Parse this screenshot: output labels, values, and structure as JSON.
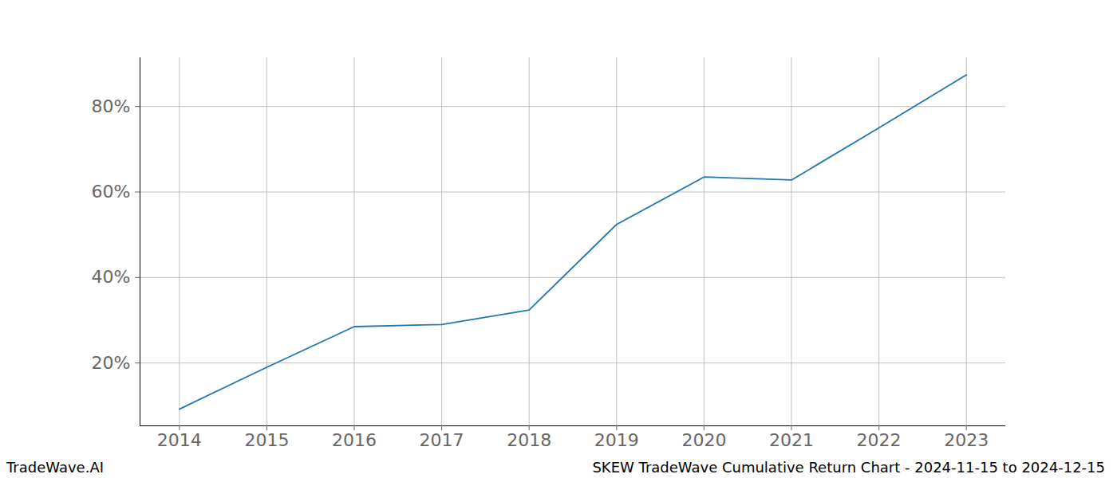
{
  "chart_data": {
    "type": "line",
    "title": "SKEW TradeWave Cumulative Return Chart - 2024-11-15 to 2024-12-15",
    "caption": "TradeWave.AI",
    "x": [
      2014,
      2015,
      2016,
      2017,
      2018,
      2019,
      2020,
      2021,
      2022,
      2023
    ],
    "values": [
      9.2,
      19.0,
      28.5,
      29.0,
      32.4,
      52.4,
      63.5,
      62.8,
      75.0,
      87.4
    ],
    "color": "#1f77b4",
    "xlim": [
      2013.55,
      2023.45
    ],
    "xticks": [
      2014,
      2015,
      2016,
      2017,
      2018,
      2019,
      2020,
      2021,
      2022,
      2023
    ],
    "ylim": [
      5.3,
      91.4
    ],
    "yticks": [
      {
        "value": 20,
        "label": "20%"
      },
      {
        "value": 40,
        "label": "40%"
      },
      {
        "value": 60,
        "label": "60%"
      },
      {
        "value": 80,
        "label": "80%"
      }
    ],
    "grid": true
  }
}
